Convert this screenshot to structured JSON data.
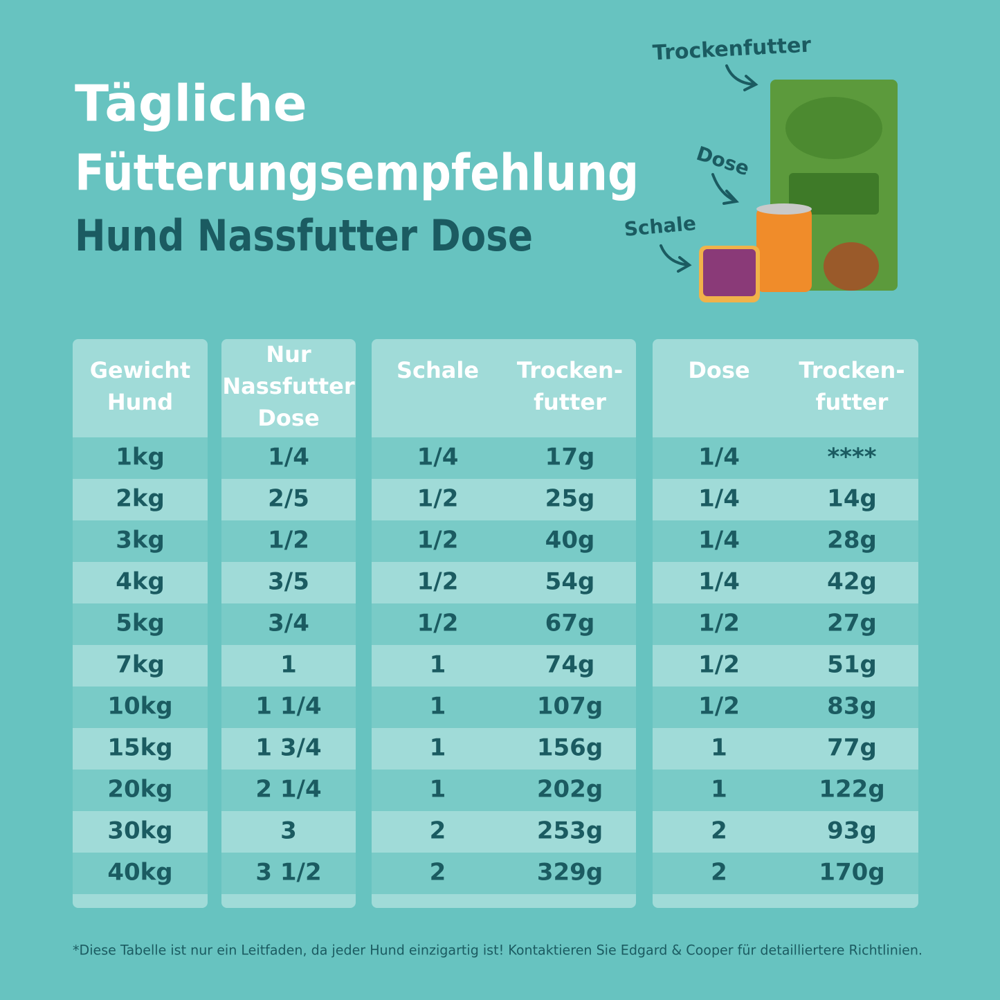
{
  "title": [
    "Tägliche",
    "Fütterungsempfehlung"
  ],
  "subtitle": "Hund Nassfutter Dose",
  "product_labels": {
    "dry": "Trockenfutter",
    "can": "Dose",
    "tray": "Schale"
  },
  "tables": [
    {
      "columns": [
        {
          "header": [
            "Gewicht",
            "Hund"
          ],
          "values": [
            "1kg",
            "2kg",
            "3kg",
            "4kg",
            "5kg",
            "7kg",
            "10kg",
            "15kg",
            "20kg",
            "30kg",
            "40kg"
          ]
        }
      ]
    },
    {
      "columns": [
        {
          "header": [
            "Nur",
            "Nassfutter",
            "Dose"
          ],
          "values": [
            "1/4",
            "2/5",
            "1/2",
            "3/5",
            "3/4",
            "1",
            "1 1/4",
            "1 3/4",
            "2 1/4",
            "3",
            "3 1/2"
          ]
        }
      ]
    },
    {
      "columns": [
        {
          "header": [
            "Schale"
          ],
          "values": [
            "1/4",
            "1/2",
            "1/2",
            "1/2",
            "1/2",
            "1",
            "1",
            "1",
            "1",
            "2",
            "2"
          ]
        },
        {
          "header": [
            "Trocken-",
            "futter"
          ],
          "values": [
            "17g",
            "25g",
            "40g",
            "54g",
            "67g",
            "74g",
            "107g",
            "156g",
            "202g",
            "253g",
            "329g"
          ]
        }
      ]
    },
    {
      "columns": [
        {
          "header": [
            "Dose"
          ],
          "values": [
            "1/4",
            "1/4",
            "1/4",
            "1/4",
            "1/2",
            "1/2",
            "1/2",
            "1",
            "1",
            "2",
            "2"
          ]
        },
        {
          "header": [
            "Trocken-",
            "futter"
          ],
          "values": [
            "****",
            "14g",
            "28g",
            "42g",
            "27g",
            "51g",
            "83g",
            "77g",
            "122g",
            "93g",
            "170g"
          ]
        }
      ]
    }
  ],
  "footnote": "*Diese Tabelle ist nur ein Leitfaden, da jeder Hund einzigartig ist! Kontaktieren Sie Edgard & Cooper für detailliertere Richtlinien."
}
